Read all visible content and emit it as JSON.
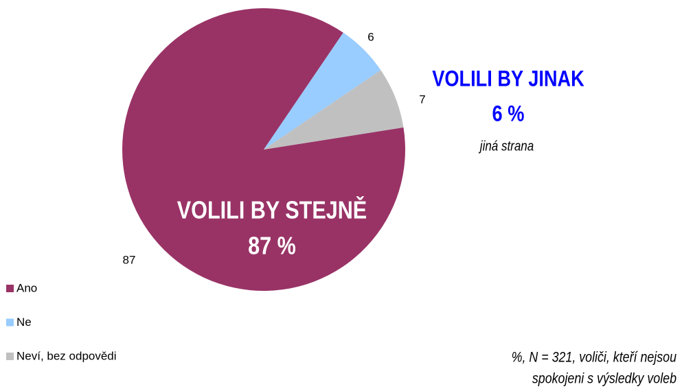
{
  "chart_data": {
    "type": "pie",
    "categories": [
      "Ano",
      "Ne",
      "Neví, bez odpovědi"
    ],
    "values": [
      87,
      6,
      7
    ],
    "colors": [
      "#993366",
      "#99ccff",
      "#c0c0c0"
    ],
    "annotations": [
      "VOLILI BY JINAK",
      "6 %",
      "jiná strana",
      "VOLILI BY STEJNĚ",
      "87 %"
    ],
    "note": [
      "%, N = 321, voliči, kteří nejsou",
      "spokojeni s výsledky voleb"
    ]
  }
}
